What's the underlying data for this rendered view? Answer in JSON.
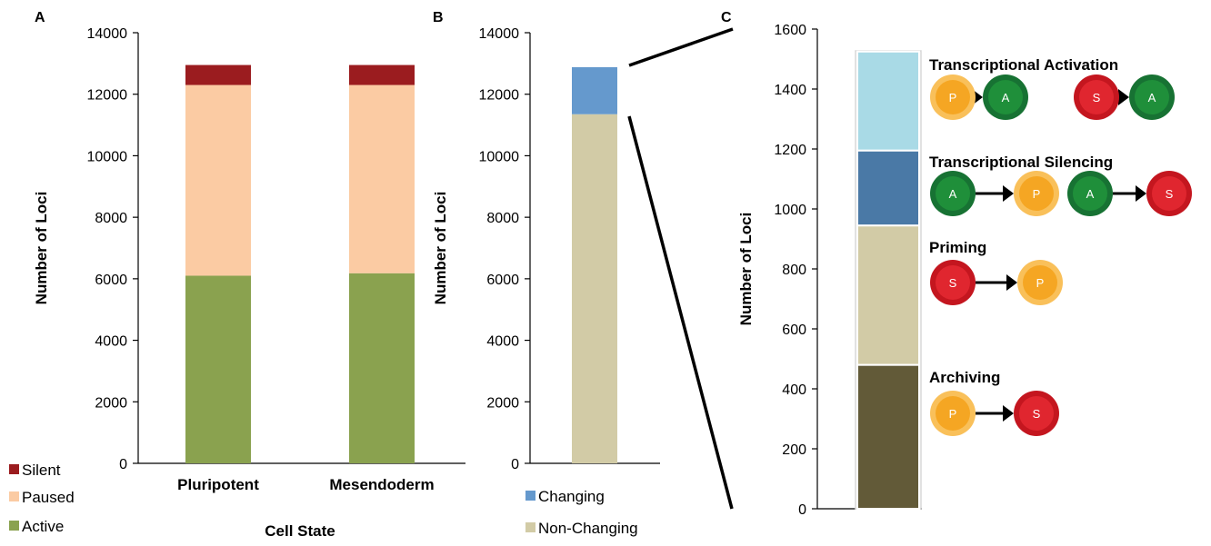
{
  "panels": {
    "A": "A",
    "B": "B",
    "C": "C"
  },
  "chart_data": [
    {
      "panel": "A",
      "type": "bar",
      "stacked": true,
      "categories": [
        "Pluripotent",
        "Mesendoderm"
      ],
      "series": [
        {
          "name": "Active",
          "color": "#8aa24f",
          "values": [
            6100,
            6180
          ]
        },
        {
          "name": "Paused",
          "color": "#fbcba3",
          "values": [
            6200,
            6120
          ]
        },
        {
          "name": "Silent",
          "color": "#9b1c1f",
          "values": [
            650,
            650
          ]
        }
      ],
      "xlabel": "Cell State",
      "ylabel": "Number of Loci",
      "ylim": [
        0,
        14000
      ],
      "yticks": [
        "0",
        "2000",
        "4000",
        "6000",
        "8000",
        "10000",
        "12000",
        "14000"
      ],
      "legend_order": [
        "Silent",
        "Paused",
        "Active"
      ],
      "legend_position": "bottom-left"
    },
    {
      "panel": "B",
      "type": "bar",
      "stacked": true,
      "categories": [
        ""
      ],
      "series": [
        {
          "name": "Non-Changing",
          "color": "#d2cba6",
          "values": [
            11350
          ]
        },
        {
          "name": "Changing",
          "color": "#6599cd",
          "values": [
            1530
          ]
        }
      ],
      "ylabel": "Number of Loci",
      "ylim": [
        0,
        14000
      ],
      "yticks": [
        "0",
        "2000",
        "4000",
        "6000",
        "8000",
        "10000",
        "12000",
        "14000"
      ],
      "legend_order": [
        "Changing",
        "Non-Changing"
      ],
      "legend_position": "bottom"
    },
    {
      "panel": "C",
      "type": "bar",
      "stacked": true,
      "categories": [
        ""
      ],
      "series": [
        {
          "name": "Archiving",
          "color": "#625a38",
          "values": [
            480
          ]
        },
        {
          "name": "Priming",
          "color": "#d2cba6",
          "values": [
            465
          ]
        },
        {
          "name": "Transcriptional Silencing",
          "color": "#4a79a6",
          "values": [
            250
          ]
        },
        {
          "name": "Transcriptional Activation",
          "color": "#a9dae6",
          "values": [
            330
          ]
        }
      ],
      "ylabel": "Number of Loci",
      "ylim": [
        0,
        1600
      ],
      "yticks": [
        "0",
        "200",
        "400",
        "600",
        "800",
        "1000",
        "1200",
        "1400",
        "1600"
      ]
    }
  ],
  "annotations": [
    {
      "title": "Transcriptional Activation",
      "transitions": [
        [
          "P",
          "A"
        ],
        [
          "S",
          "A"
        ]
      ]
    },
    {
      "title": "Transcriptional Silencing",
      "transitions": [
        [
          "A",
          "P"
        ],
        [
          "A",
          "S"
        ]
      ]
    },
    {
      "title": "Priming",
      "transitions": [
        [
          "S",
          "P"
        ]
      ]
    },
    {
      "title": "Archiving",
      "transitions": [
        [
          "P",
          "S"
        ]
      ]
    }
  ],
  "node_colors": {
    "P": "#f5a623",
    "A": "#1f8f3a",
    "S": "#e0262f"
  },
  "node_ring_colors": {
    "P": "#f9c05a",
    "A": "#177233",
    "S": "#c4161f"
  }
}
